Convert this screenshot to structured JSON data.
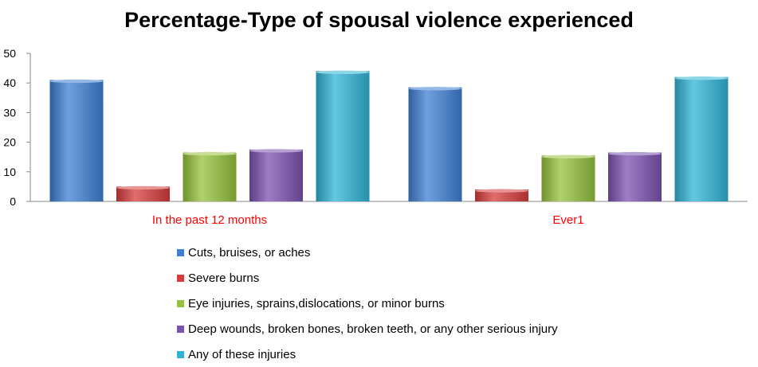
{
  "chart_data": {
    "type": "bar",
    "title": "Percentage-Type of spousal violence experienced",
    "categories": [
      "In the past 12 months",
      "Ever1"
    ],
    "category_label_color": "#ff0000",
    "series": [
      {
        "name": "Cuts, bruises, or aches",
        "values": [
          41,
          38.5
        ],
        "color": "#3f7fd4"
      },
      {
        "name": "Severe burns",
        "values": [
          5,
          4
        ],
        "color": "#d63c3c"
      },
      {
        "name": "Eye injuries, sprains,dislocations, or minor burns",
        "values": [
          16.5,
          15.5
        ],
        "color": "#95c23d"
      },
      {
        "name": "Deep wounds, broken bones, broken teeth, or any other serious injury",
        "values": [
          17.5,
          16.5
        ],
        "color": "#7c52b0"
      },
      {
        "name": "Any of these injuries",
        "values": [
          44,
          42
        ],
        "color": "#30b4d6"
      }
    ],
    "ylim": [
      0,
      50
    ],
    "yticks": [
      0,
      10,
      20,
      30,
      40,
      50
    ],
    "grid": false,
    "legend_position": "bottom"
  }
}
